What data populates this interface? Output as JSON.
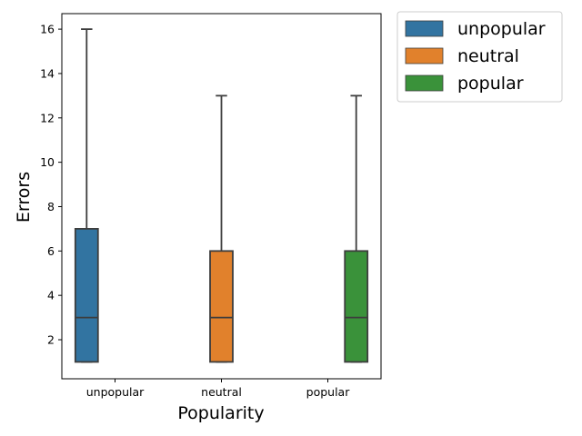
{
  "chart_data": {
    "type": "box",
    "title": "",
    "xlabel": "Popularity",
    "ylabel": "Errors",
    "categories": [
      "unpopular",
      "neutral",
      "popular"
    ],
    "ylim": [
      0.24,
      16.7
    ],
    "yticks": [
      2,
      4,
      6,
      8,
      10,
      12,
      14,
      16
    ],
    "series": [
      {
        "name": "unpopular",
        "color": "#3274a1",
        "category_index": 0,
        "stats": {
          "min": 1,
          "q1": 1,
          "median": 3,
          "q3": 7,
          "max": 16
        }
      },
      {
        "name": "neutral",
        "color": "#e1812c",
        "category_index": 1,
        "stats": {
          "min": 1,
          "q1": 1,
          "median": 3,
          "q3": 6,
          "max": 13
        }
      },
      {
        "name": "popular",
        "color": "#3a923a",
        "category_index": 2,
        "stats": {
          "min": 1,
          "q1": 1,
          "median": 3,
          "q3": 6,
          "max": 13
        }
      }
    ],
    "legend": {
      "placement": "outside-right-top",
      "entries": [
        "unpopular",
        "neutral",
        "popular"
      ]
    },
    "grid": false
  }
}
